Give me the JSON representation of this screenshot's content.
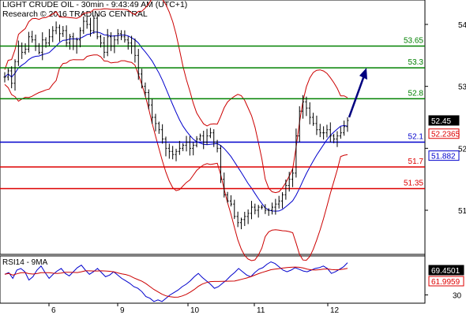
{
  "header": {
    "line1": "LIGHT CRUDE OIL - 30min - 9:43:49 AM (UTC+1)",
    "line2": "Research © 2016 TRADING CENTRAL"
  },
  "colors": {
    "green": "#008000",
    "blue": "#0000cc",
    "red": "#dd0000",
    "navy": "#000080",
    "bollinger": "#cc0000",
    "ma": "#0000cc"
  },
  "chart_data": [
    {
      "type": "candlestick",
      "y_axis": {
        "ticks": [
          "54",
          "53",
          "52",
          "51"
        ],
        "range": [
          50.4,
          54.35
        ]
      },
      "x_axis": {
        "ticks": [
          "6",
          "9",
          "10",
          "11",
          "12"
        ]
      },
      "horizontal_levels": [
        {
          "value": 53.65,
          "label": "53.65",
          "color": "green"
        },
        {
          "value": 53.3,
          "label": "53.3",
          "color": "green"
        },
        {
          "value": 52.8,
          "label": "52.8",
          "color": "green"
        },
        {
          "value": 52.1,
          "label": "52.1",
          "color": "blue"
        },
        {
          "value": 51.7,
          "label": "51.7",
          "color": "red"
        },
        {
          "value": 51.35,
          "label": "51.35",
          "color": "red"
        }
      ],
      "value_boxes": [
        {
          "value": 52.45,
          "label": "52.45",
          "style": "black"
        },
        {
          "value": 52.2365,
          "label": "52.2365",
          "style": "red"
        },
        {
          "value": 51.882,
          "label": "51.882",
          "style": "blue"
        }
      ],
      "price_path": [
        53.15,
        53.25,
        53.05,
        53.4,
        53.65,
        53.55,
        53.6,
        53.8,
        53.75,
        53.65,
        53.55,
        53.75,
        53.7,
        53.8,
        53.9,
        53.95,
        53.85,
        53.9,
        53.7,
        53.8,
        53.65,
        53.75,
        53.9,
        54.05,
        54.0,
        53.9,
        54.1,
        53.8,
        53.7,
        53.55,
        53.8,
        53.65,
        53.75,
        53.85,
        53.8,
        53.75,
        53.7,
        53.65,
        53.5,
        53.2,
        53.0,
        52.9,
        52.7,
        52.5,
        52.4,
        52.3,
        52.15,
        52.0,
        51.95,
        51.9,
        51.95,
        52.0,
        52.05,
        52.1,
        52.0,
        52.05,
        52.15,
        52.2,
        52.1,
        52.2,
        52.25,
        52.1,
        52.0,
        51.5,
        51.25,
        51.15,
        51.1,
        50.9,
        50.8,
        50.85,
        50.9,
        50.95,
        51.05,
        51.0,
        51.05,
        51.05,
        51.0,
        51.0,
        51.05,
        51.1,
        51.15,
        51.25,
        51.4,
        51.5,
        51.6,
        52.2,
        52.6,
        52.75,
        52.65,
        52.5,
        52.4,
        52.3,
        52.25,
        52.25,
        52.3,
        52.2,
        52.15,
        52.2,
        52.25,
        52.35,
        52.45
      ],
      "forecast_arrow": {
        "from": 52.45,
        "to": 53.3
      }
    },
    {
      "type": "line",
      "title": "RSI14 - 9MA",
      "y_axis": {
        "ticks": [
          "30"
        ]
      },
      "series": [
        {
          "name": "RSI14",
          "color": "#0000cc"
        },
        {
          "name": "9MA",
          "color": "#cc0000"
        }
      ],
      "value_boxes": [
        {
          "value": 69.4501,
          "label": "69.4501",
          "style": "black"
        },
        {
          "value": 61.9959,
          "label": "61.9959",
          "style": "red"
        }
      ],
      "rsi_path": [
        55,
        57,
        50,
        60,
        62,
        58,
        48,
        52,
        60,
        65,
        57,
        50,
        55,
        59,
        62,
        56,
        53,
        58,
        63,
        66,
        60,
        55,
        58,
        62,
        57,
        52,
        54,
        58,
        54,
        50,
        47,
        44,
        40,
        38,
        34,
        28,
        26,
        22,
        24,
        22,
        26,
        30,
        33,
        36,
        40,
        43,
        47,
        52,
        56,
        51,
        47,
        43,
        38,
        40,
        44,
        48,
        53,
        57,
        62,
        58,
        54,
        52,
        57,
        61,
        63,
        67,
        70,
        68,
        64,
        60,
        58,
        60,
        63,
        61,
        59,
        58,
        60,
        62,
        63,
        65,
        62,
        56,
        58,
        61,
        64,
        69
      ]
    }
  ]
}
